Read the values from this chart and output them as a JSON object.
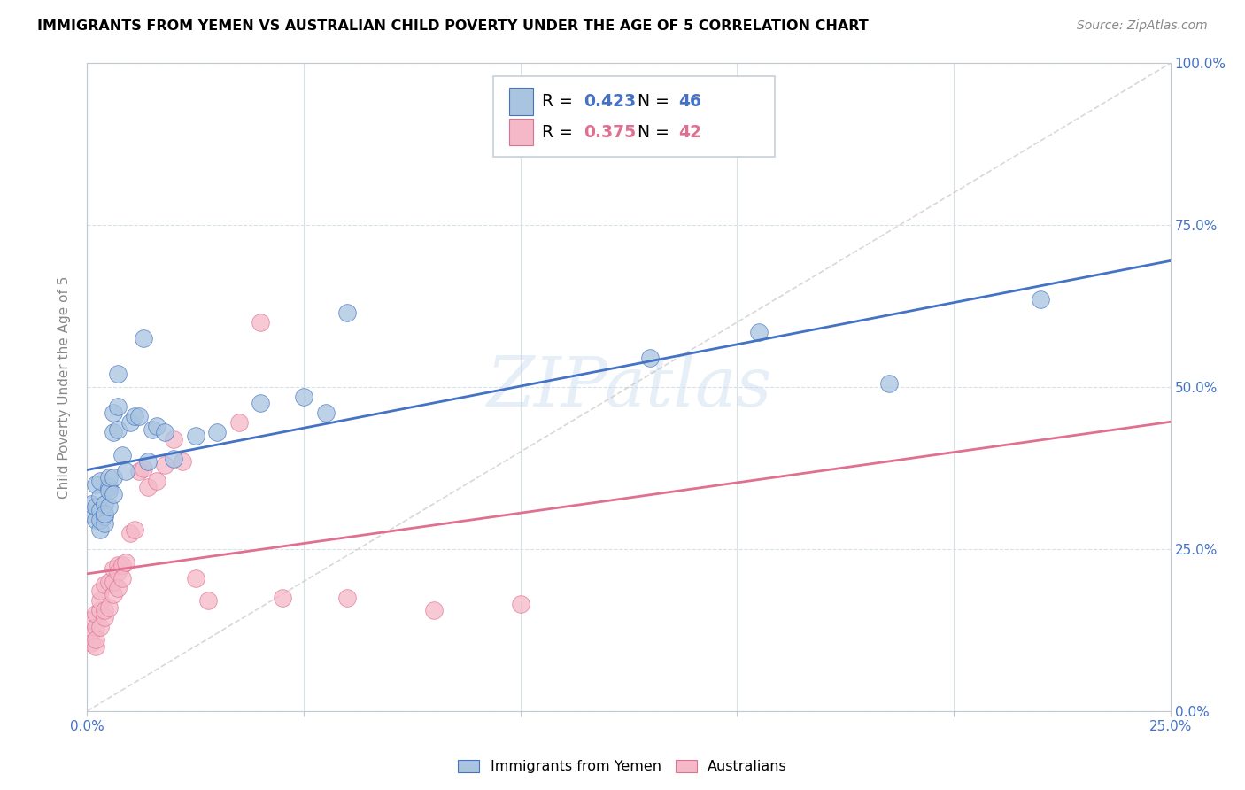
{
  "title": "IMMIGRANTS FROM YEMEN VS AUSTRALIAN CHILD POVERTY UNDER THE AGE OF 5 CORRELATION CHART",
  "source": "Source: ZipAtlas.com",
  "ylabel": "Child Poverty Under the Age of 5",
  "xlim": [
    0,
    0.25
  ],
  "ylim": [
    0,
    1.0
  ],
  "legend_labels": [
    "Immigrants from Yemen",
    "Australians"
  ],
  "R_blue": 0.423,
  "N_blue": 46,
  "R_pink": 0.375,
  "N_pink": 42,
  "color_blue": "#a8c4e0",
  "color_pink": "#f4b8c8",
  "color_blue_text": "#4472c4",
  "color_pink_text": "#e07090",
  "color_line_blue": "#4472c4",
  "color_line_pink": "#e07090",
  "color_diag": "#c8c8c8",
  "color_grid": "#d8e0e8",
  "watermark": "ZIPatlas",
  "blue_x": [
    0.001,
    0.001,
    0.002,
    0.002,
    0.002,
    0.003,
    0.003,
    0.003,
    0.003,
    0.003,
    0.004,
    0.004,
    0.004,
    0.004,
    0.005,
    0.005,
    0.005,
    0.005,
    0.006,
    0.006,
    0.006,
    0.006,
    0.007,
    0.007,
    0.007,
    0.008,
    0.009,
    0.01,
    0.011,
    0.012,
    0.013,
    0.014,
    0.015,
    0.016,
    0.018,
    0.02,
    0.025,
    0.03,
    0.04,
    0.05,
    0.055,
    0.06,
    0.13,
    0.155,
    0.185,
    0.22
  ],
  "blue_y": [
    0.305,
    0.32,
    0.295,
    0.315,
    0.35,
    0.28,
    0.31,
    0.295,
    0.33,
    0.355,
    0.3,
    0.32,
    0.29,
    0.305,
    0.345,
    0.315,
    0.34,
    0.36,
    0.36,
    0.335,
    0.43,
    0.46,
    0.47,
    0.52,
    0.435,
    0.395,
    0.37,
    0.445,
    0.455,
    0.455,
    0.575,
    0.385,
    0.435,
    0.44,
    0.43,
    0.39,
    0.425,
    0.43,
    0.475,
    0.485,
    0.46,
    0.615,
    0.545,
    0.585,
    0.505,
    0.635
  ],
  "pink_x": [
    0.001,
    0.001,
    0.001,
    0.002,
    0.002,
    0.002,
    0.002,
    0.003,
    0.003,
    0.003,
    0.003,
    0.004,
    0.004,
    0.004,
    0.005,
    0.005,
    0.006,
    0.006,
    0.006,
    0.007,
    0.007,
    0.007,
    0.008,
    0.008,
    0.009,
    0.01,
    0.011,
    0.012,
    0.013,
    0.014,
    0.016,
    0.018,
    0.02,
    0.022,
    0.025,
    0.028,
    0.035,
    0.04,
    0.045,
    0.06,
    0.08,
    0.1
  ],
  "pink_y": [
    0.12,
    0.105,
    0.14,
    0.1,
    0.13,
    0.15,
    0.11,
    0.155,
    0.17,
    0.185,
    0.13,
    0.145,
    0.195,
    0.155,
    0.16,
    0.2,
    0.22,
    0.18,
    0.2,
    0.225,
    0.215,
    0.19,
    0.225,
    0.205,
    0.23,
    0.275,
    0.28,
    0.37,
    0.375,
    0.345,
    0.355,
    0.38,
    0.42,
    0.385,
    0.205,
    0.17,
    0.445,
    0.6,
    0.175,
    0.175,
    0.155,
    0.165
  ]
}
